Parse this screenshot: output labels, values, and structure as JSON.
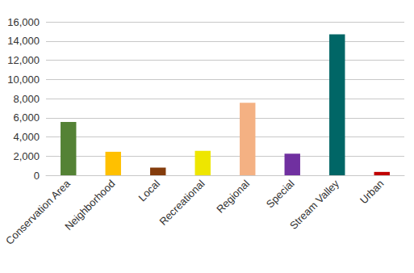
{
  "chart_data": {
    "type": "bar",
    "categories": [
      "Conservation Area",
      "Neighborhood",
      "Local",
      "Recreational",
      "Regional",
      "Special",
      "Stream Valley",
      "Urban"
    ],
    "values": [
      5550,
      2450,
      800,
      2550,
      7550,
      2250,
      14700,
      350
    ],
    "colors": [
      "#548235",
      "#ffc000",
      "#843c0c",
      "#eee600",
      "#f4b183",
      "#7030a0",
      "#006666",
      "#c00000"
    ],
    "ylim": [
      0,
      16000
    ],
    "yticks": [
      0,
      {
        "value": 2000,
        "label": "2,000"
      },
      {
        "value": 4000,
        "label": "4,000"
      },
      {
        "value": 6000,
        "label": "6,000"
      },
      {
        "value": 8000,
        "label": "8,000"
      },
      {
        "value": 10000,
        "label": "10,000"
      },
      {
        "value": 12000,
        "label": "12,000"
      },
      {
        "value": 14000,
        "label": "14,000"
      },
      {
        "value": 16000,
        "label": "16,000"
      }
    ],
    "grid": true
  }
}
